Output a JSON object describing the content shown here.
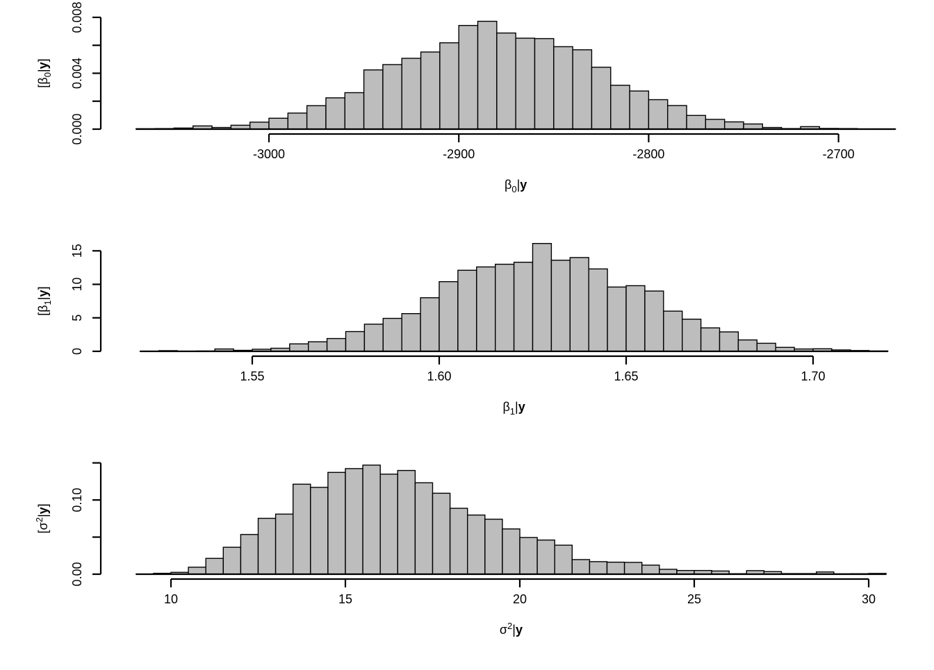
{
  "figure": {
    "background": "#ffffff",
    "bar_fill": "#bdbdbd",
    "bar_stroke": "#000000",
    "axis_color": "#000000"
  },
  "chart_data": [
    {
      "id": "beta0",
      "type": "histogram",
      "title": "",
      "xlabel_parts": {
        "pre": "β",
        "script": "0",
        "script_pos": "sub",
        "pipe": "|",
        "bold": "y",
        "close": ""
      },
      "ylabel_parts": {
        "pre": "[β",
        "script": "0",
        "script_pos": "sub",
        "pipe": "|",
        "bold": "y",
        "close": "]"
      },
      "x_tick_values": [
        -3000,
        -2900,
        -2800,
        -2700
      ],
      "x_tick_labels": [
        "-3000",
        "-2900",
        "-2800",
        "-2700"
      ],
      "y_tick_values": [
        0,
        0.002,
        0.004,
        0.006,
        0.008
      ],
      "y_tick_labels": [
        "0.000",
        "",
        "0.004",
        "",
        "0.008"
      ],
      "x_domain": [
        -3070,
        -2670
      ],
      "y_domain": [
        0,
        0.008
      ],
      "bins_start": -3070,
      "bin_width": 10,
      "densities": [
        3e-05,
        4e-05,
        8e-05,
        0.00023,
        0.00012,
        0.00028,
        0.0005,
        0.00078,
        0.00115,
        0.00168,
        0.00224,
        0.00261,
        0.00424,
        0.00462,
        0.00507,
        0.00552,
        0.00618,
        0.00742,
        0.00772,
        0.00688,
        0.00651,
        0.00648,
        0.0059,
        0.00568,
        0.00443,
        0.00314,
        0.00273,
        0.00211,
        0.00169,
        0.00098,
        0.0007,
        0.00052,
        0.00037,
        0.00012,
        4e-05,
        0.00018,
        5e-05,
        4e-05,
        2e-05,
        2e-05
      ]
    },
    {
      "id": "beta1",
      "type": "histogram",
      "title": "",
      "xlabel_parts": {
        "pre": "β",
        "script": "1",
        "script_pos": "sub",
        "pipe": "|",
        "bold": "y",
        "close": ""
      },
      "ylabel_parts": {
        "pre": "[β",
        "script": "1",
        "script_pos": "sub",
        "pipe": "|",
        "bold": "y",
        "close": "]"
      },
      "x_tick_values": [
        1.55,
        1.6,
        1.65,
        1.7
      ],
      "x_tick_labels": [
        "1.55",
        "1.60",
        "1.65",
        "1.70"
      ],
      "y_tick_values": [
        0,
        5,
        10,
        15
      ],
      "y_tick_labels": [
        "0",
        "5",
        "10",
        "15"
      ],
      "x_domain": [
        1.52,
        1.72
      ],
      "y_domain": [
        0,
        15
      ],
      "bins_start": 1.52,
      "bin_width": 0.005,
      "densities": [
        0.02,
        0.1,
        0.03,
        0.05,
        0.35,
        0.15,
        0.31,
        0.46,
        1.11,
        1.42,
        1.91,
        2.95,
        4.05,
        4.92,
        5.63,
        8.0,
        10.4,
        12.1,
        12.6,
        13.0,
        13.3,
        16.1,
        13.6,
        14.0,
        12.3,
        9.6,
        9.8,
        9.0,
        6.0,
        4.8,
        3.5,
        2.9,
        1.7,
        1.2,
        0.59,
        0.35,
        0.38,
        0.21,
        0.12,
        0.05
      ]
    },
    {
      "id": "sigma2",
      "type": "histogram",
      "title": "",
      "xlabel_parts": {
        "pre": "σ",
        "script": "2",
        "script_pos": "sup",
        "pipe": "|",
        "bold": "y",
        "close": ""
      },
      "ylabel_parts": {
        "pre": "[σ",
        "script": "2",
        "script_pos": "sup",
        "pipe": "|",
        "bold": "y",
        "close": "]"
      },
      "x_tick_values": [
        10,
        15,
        20,
        25,
        30
      ],
      "x_tick_labels": [
        "10",
        "15",
        "20",
        "25",
        "30"
      ],
      "y_tick_values": [
        0,
        0.05,
        0.1,
        0.15
      ],
      "y_tick_labels": [
        "0.00",
        "",
        "0.10",
        ""
      ],
      "x_domain": [
        9.0,
        30.5
      ],
      "y_domain": [
        0,
        0.15
      ],
      "bins_start": 9.0,
      "bin_width": 0.5,
      "densities": [
        0.0002,
        0.0012,
        0.0025,
        0.0094,
        0.0213,
        0.0363,
        0.0535,
        0.0753,
        0.081,
        0.1213,
        0.117,
        0.1372,
        0.1423,
        0.147,
        0.1348,
        0.1398,
        0.1232,
        0.1091,
        0.0888,
        0.0797,
        0.0741,
        0.061,
        0.0494,
        0.046,
        0.0391,
        0.0197,
        0.0169,
        0.0162,
        0.0159,
        0.0122,
        0.0066,
        0.005,
        0.005,
        0.0043,
        0.0006,
        0.0048,
        0.0035,
        0.0008,
        0.0008,
        0.003,
        0.0005,
        0.0006,
        0.001
      ]
    }
  ]
}
